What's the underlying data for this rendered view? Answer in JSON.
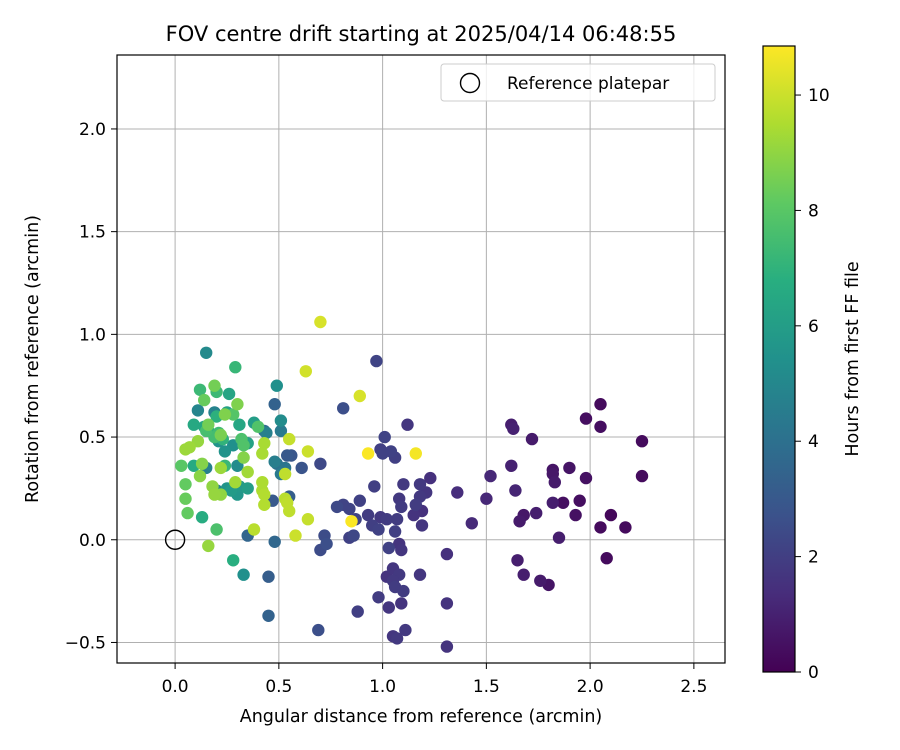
{
  "chart_data": {
    "type": "scatter",
    "title": "FOV centre drift starting at 2025/04/14 06:48:55",
    "xlabel": "Angular distance from reference (arcmin)",
    "ylabel": "Rotation from reference (arcmin)",
    "xlim": [
      -0.28,
      2.65
    ],
    "ylim": [
      -0.6,
      2.36
    ],
    "xticks": [
      0.0,
      0.5,
      1.0,
      1.5,
      2.0,
      2.5
    ],
    "yticks": [
      -0.5,
      0.0,
      0.5,
      1.0,
      1.5,
      2.0
    ],
    "grid": true,
    "legend": {
      "placement": "top-right",
      "entries": [
        {
          "label": "Reference platepar",
          "marker": "open-circle"
        }
      ]
    },
    "reference_point": {
      "x": 0.0,
      "y": 0.0
    },
    "colorbar": {
      "label": "Hours from first FF file",
      "min": 0,
      "max": 10.85,
      "ticks": [
        0,
        2,
        4,
        6,
        8,
        10
      ],
      "colormap": "viridis"
    },
    "series": [
      {
        "marker": "filled-circle",
        "points": [
          [
            2.05,
            0.66,
            0.3
          ],
          [
            1.98,
            0.59,
            0.4
          ],
          [
            2.25,
            0.48,
            0.3
          ],
          [
            2.25,
            0.31,
            0.3
          ],
          [
            2.05,
            0.55,
            0.4
          ],
          [
            2.1,
            0.12,
            0.2
          ],
          [
            2.05,
            0.06,
            0.3
          ],
          [
            2.17,
            0.06,
            0.3
          ],
          [
            2.08,
            -0.09,
            0.3
          ],
          [
            1.95,
            0.19,
            0.4
          ],
          [
            1.87,
            0.18,
            0.4
          ],
          [
            1.93,
            0.12,
            0.5
          ],
          [
            1.98,
            0.3,
            0.5
          ],
          [
            1.9,
            0.35,
            0.6
          ],
          [
            1.82,
            0.34,
            0.6
          ],
          [
            1.82,
            0.32,
            0.7
          ],
          [
            1.83,
            0.28,
            0.8
          ],
          [
            1.82,
            0.18,
            0.9
          ],
          [
            1.85,
            0.01,
            0.9
          ],
          [
            1.8,
            -0.22,
            0.6
          ],
          [
            1.76,
            -0.2,
            0.8
          ],
          [
            1.74,
            0.13,
            0.9
          ],
          [
            1.68,
            0.12,
            0.7
          ],
          [
            1.66,
            0.09,
            0.8
          ],
          [
            1.68,
            -0.17,
            0.9
          ],
          [
            1.65,
            -0.1,
            0.9
          ],
          [
            1.72,
            0.49,
            0.8
          ],
          [
            1.62,
            0.56,
            0.9
          ],
          [
            1.63,
            0.54,
            1.0
          ],
          [
            1.62,
            0.36,
            1.0
          ],
          [
            1.64,
            0.24,
            1.1
          ],
          [
            1.52,
            0.31,
            1.2
          ],
          [
            1.5,
            0.2,
            1.2
          ],
          [
            1.43,
            0.08,
            1.3
          ],
          [
            1.36,
            0.23,
            1.4
          ],
          [
            1.31,
            -0.07,
            1.5
          ],
          [
            1.31,
            -0.31,
            1.6
          ],
          [
            1.31,
            -0.52,
            1.6
          ],
          [
            1.23,
            0.3,
            1.5
          ],
          [
            1.21,
            0.23,
            1.7
          ],
          [
            1.18,
            0.27,
            1.8
          ],
          [
            1.18,
            0.21,
            1.8
          ],
          [
            1.16,
            0.17,
            1.9
          ],
          [
            1.19,
            0.14,
            1.5
          ],
          [
            1.19,
            0.07,
            1.7
          ],
          [
            1.15,
            0.12,
            1.6
          ],
          [
            1.12,
            0.56,
            1.7
          ],
          [
            1.1,
            0.27,
            1.8
          ],
          [
            1.08,
            0.2,
            1.8
          ],
          [
            1.09,
            0.16,
            1.9
          ],
          [
            1.07,
            0.1,
            1.9
          ],
          [
            1.06,
            0.04,
            2.0
          ],
          [
            1.08,
            -0.02,
            1.6
          ],
          [
            1.09,
            -0.05,
            1.7
          ],
          [
            1.05,
            -0.14,
            1.7
          ],
          [
            1.08,
            -0.17,
            1.8
          ],
          [
            1.05,
            -0.2,
            1.8
          ],
          [
            1.06,
            -0.23,
            1.9
          ],
          [
            1.1,
            -0.25,
            1.9
          ],
          [
            1.02,
            -0.18,
            1.6
          ],
          [
            1.18,
            -0.17,
            1.7
          ],
          [
            1.09,
            -0.31,
            1.6
          ],
          [
            1.03,
            -0.33,
            1.7
          ],
          [
            1.05,
            -0.47,
            1.7
          ],
          [
            1.07,
            -0.48,
            1.8
          ],
          [
            1.11,
            -0.44,
            1.8
          ],
          [
            0.98,
            -0.28,
            1.9
          ],
          [
            1.03,
            -0.04,
            2.1
          ],
          [
            0.99,
            0.11,
            1.8
          ],
          [
            1.02,
            0.1,
            1.9
          ],
          [
            0.98,
            0.05,
            2.1
          ],
          [
            0.95,
            0.07,
            2.0
          ],
          [
            0.93,
            0.12,
            1.9
          ],
          [
            0.96,
            0.26,
            2.0
          ],
          [
            0.99,
            0.44,
            2.0
          ],
          [
            1.04,
            0.43,
            2.1
          ],
          [
            1.06,
            0.4,
            2.0
          ],
          [
            1.0,
            0.42,
            2.1
          ],
          [
            1.01,
            0.5,
            2.2
          ],
          [
            0.97,
            0.87,
            2.2
          ],
          [
            0.88,
            -0.35,
            2.0
          ],
          [
            0.89,
            0.19,
            2.1
          ],
          [
            0.87,
            0.1,
            2.2
          ],
          [
            0.84,
            0.15,
            2.2
          ],
          [
            0.86,
            0.02,
            2.3
          ],
          [
            0.84,
            0.01,
            2.1
          ],
          [
            0.81,
            0.17,
            2.2
          ],
          [
            0.78,
            0.16,
            2.4
          ],
          [
            0.81,
            0.64,
            2.6
          ],
          [
            0.7,
            0.37,
            2.4
          ],
          [
            0.72,
            0.02,
            2.5
          ],
          [
            0.7,
            -0.05,
            2.5
          ],
          [
            0.73,
            -0.02,
            2.6
          ],
          [
            0.69,
            -0.44,
            2.6
          ],
          [
            0.61,
            0.35,
            2.8
          ],
          [
            0.56,
            0.41,
            2.9
          ],
          [
            0.54,
            0.41,
            3.0
          ],
          [
            0.55,
            0.21,
            3.2
          ],
          [
            0.47,
            0.19,
            3.0
          ],
          [
            0.45,
            -0.18,
            3.2
          ],
          [
            0.45,
            -0.37,
            3.4
          ],
          [
            0.35,
            0.02,
            3.5
          ],
          [
            0.48,
            0.66,
            3.4
          ],
          [
            0.48,
            -0.01,
            3.6
          ],
          [
            0.43,
            0.53,
            3.8
          ],
          [
            0.49,
            0.37,
            4.0
          ],
          [
            0.53,
            0.35,
            4.2
          ],
          [
            0.51,
            0.32,
            4.4
          ],
          [
            0.51,
            0.53,
            4.4
          ],
          [
            0.48,
            0.38,
            4.6
          ],
          [
            0.44,
            0.52,
            4.7
          ],
          [
            0.15,
            0.35,
            4.7
          ],
          [
            0.2,
            0.24,
            4.8
          ],
          [
            0.19,
            0.62,
            4.8
          ],
          [
            0.11,
            0.63,
            4.9
          ],
          [
            0.15,
            0.91,
            5.1
          ],
          [
            0.51,
            0.58,
            5.2
          ],
          [
            0.49,
            0.75,
            5.4
          ],
          [
            0.33,
            -0.17,
            5.4
          ],
          [
            0.3,
            0.36,
            5.2
          ],
          [
            0.28,
            0.46,
            5.4
          ],
          [
            0.24,
            0.43,
            5.5
          ],
          [
            0.21,
            0.48,
            5.5
          ],
          [
            0.2,
            0.5,
            5.6
          ],
          [
            0.25,
            0.25,
            5.6
          ],
          [
            0.3,
            0.22,
            5.7
          ],
          [
            0.31,
            0.26,
            5.8
          ],
          [
            0.27,
            0.24,
            5.9
          ],
          [
            0.35,
            0.25,
            6.0
          ],
          [
            0.38,
            0.57,
            6.0
          ],
          [
            0.35,
            0.47,
            6.2
          ],
          [
            0.25,
            0.62,
            6.2
          ],
          [
            0.26,
            0.71,
            6.3
          ],
          [
            0.31,
            0.56,
            6.4
          ],
          [
            0.14,
            0.55,
            6.4
          ],
          [
            0.09,
            0.56,
            6.5
          ],
          [
            0.09,
            0.36,
            6.6
          ],
          [
            0.16,
            0.53,
            6.6
          ],
          [
            0.13,
            0.11,
            6.7
          ],
          [
            0.28,
            -0.1,
            6.8
          ],
          [
            0.2,
            0.6,
            6.9
          ],
          [
            0.23,
            0.49,
            7.0
          ],
          [
            0.24,
            0.36,
            7.2
          ],
          [
            0.29,
            0.84,
            7.2
          ],
          [
            0.2,
            0.72,
            7.3
          ],
          [
            0.12,
            0.73,
            7.3
          ],
          [
            0.21,
            0.52,
            7.4
          ],
          [
            0.19,
            0.5,
            7.5
          ],
          [
            0.15,
            0.53,
            7.6
          ],
          [
            0.2,
            0.05,
            7.7
          ],
          [
            0.32,
            0.49,
            7.7
          ],
          [
            0.33,
            0.46,
            7.8
          ],
          [
            0.4,
            0.55,
            7.8
          ],
          [
            0.28,
            0.61,
            7.9
          ],
          [
            0.03,
            0.36,
            8.0
          ],
          [
            0.05,
            0.27,
            8.2
          ],
          [
            0.06,
            0.13,
            8.2
          ],
          [
            0.05,
            0.2,
            8.3
          ],
          [
            0.14,
            0.68,
            8.3
          ],
          [
            0.16,
            0.56,
            8.5
          ],
          [
            0.19,
            0.75,
            8.5
          ],
          [
            0.22,
            0.51,
            8.6
          ],
          [
            0.3,
            0.66,
            8.7
          ],
          [
            0.24,
            0.61,
            8.7
          ],
          [
            0.33,
            0.4,
            8.8
          ],
          [
            0.13,
            0.37,
            8.8
          ],
          [
            0.12,
            0.31,
            8.9
          ],
          [
            0.18,
            0.26,
            9.0
          ],
          [
            0.22,
            0.22,
            9.0
          ],
          [
            0.19,
            0.22,
            9.1
          ],
          [
            0.16,
            -0.03,
            9.1
          ],
          [
            0.11,
            0.48,
            9.1
          ],
          [
            0.05,
            0.44,
            9.2
          ],
          [
            0.07,
            0.45,
            9.2
          ],
          [
            0.22,
            0.35,
            9.2
          ],
          [
            0.29,
            0.28,
            9.3
          ],
          [
            0.35,
            0.33,
            9.3
          ],
          [
            0.43,
            0.47,
            9.4
          ],
          [
            0.42,
            0.42,
            9.4
          ],
          [
            0.42,
            0.28,
            9.5
          ],
          [
            0.42,
            0.24,
            9.5
          ],
          [
            0.43,
            0.22,
            9.6
          ],
          [
            0.43,
            0.17,
            9.6
          ],
          [
            0.38,
            0.05,
            9.7
          ],
          [
            0.53,
            0.2,
            9.7
          ],
          [
            0.54,
            0.18,
            9.8
          ],
          [
            0.55,
            0.14,
            9.8
          ],
          [
            0.53,
            0.32,
            9.8
          ],
          [
            0.55,
            0.49,
            9.9
          ],
          [
            0.64,
            0.1,
            9.9
          ],
          [
            0.58,
            0.02,
            10.0
          ],
          [
            0.64,
            0.43,
            10.0
          ],
          [
            0.63,
            0.82,
            10.1
          ],
          [
            0.7,
            1.06,
            10.2
          ],
          [
            0.89,
            0.7,
            10.2
          ],
          [
            0.85,
            0.09,
            10.8
          ],
          [
            0.93,
            0.42,
            10.8
          ],
          [
            1.16,
            0.42,
            10.7
          ]
        ]
      }
    ]
  }
}
